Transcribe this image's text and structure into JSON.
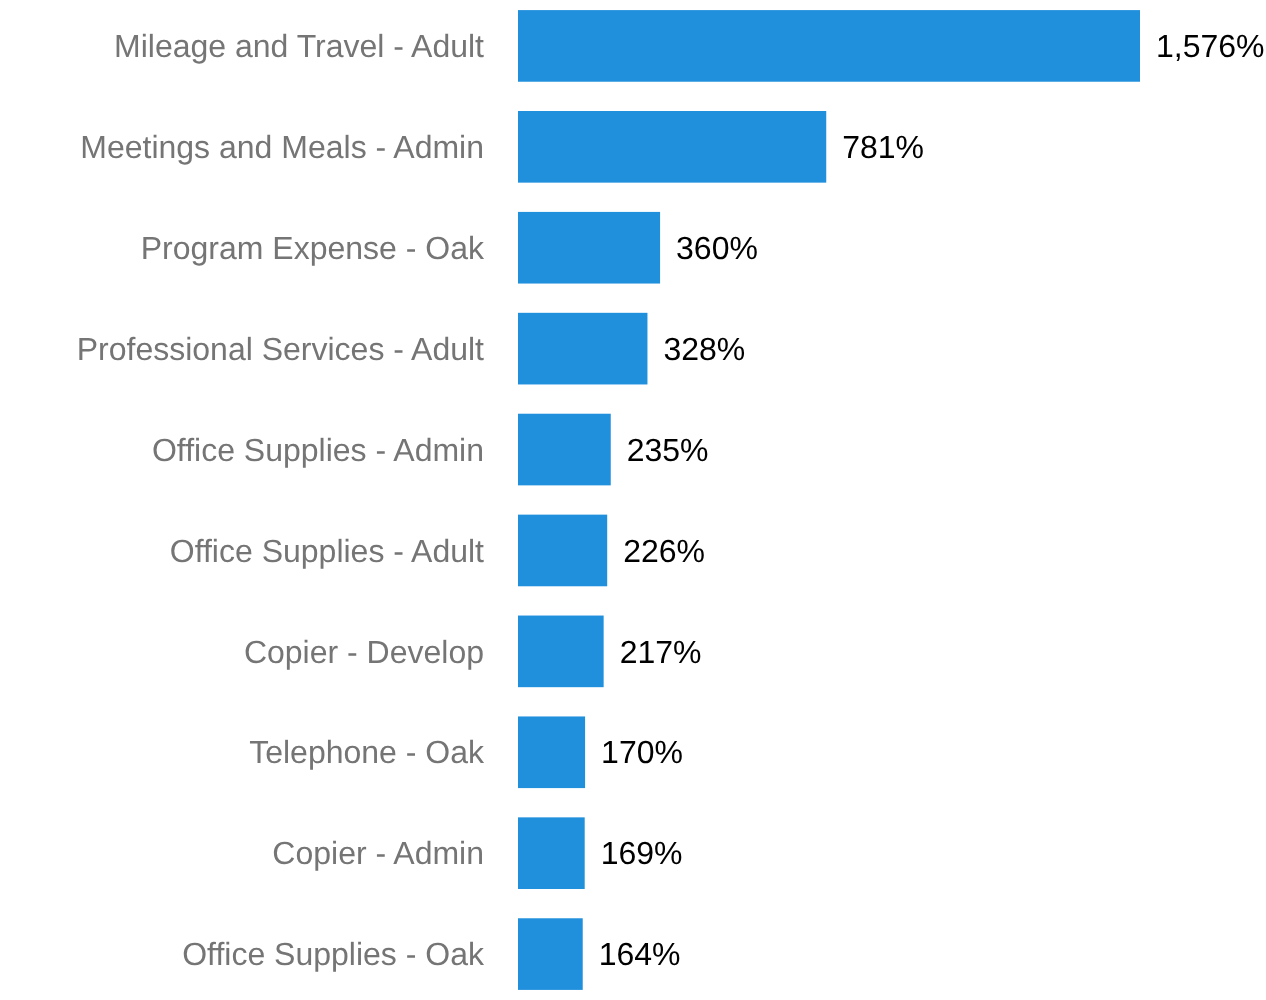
{
  "chart_data": {
    "type": "bar",
    "orientation": "horizontal",
    "categories": [
      "Mileage and Travel - Adult",
      "Meetings and Meals - Admin",
      "Program Expense - Oak",
      "Professional Services - Adult",
      "Office Supplies - Admin",
      "Office Supplies - Adult",
      "Copier - Develop",
      "Telephone - Oak",
      "Copier - Admin",
      "Office Supplies - Oak"
    ],
    "values": [
      1576,
      781,
      360,
      328,
      235,
      226,
      217,
      170,
      169,
      164
    ],
    "value_labels": [
      "1,576%",
      "781%",
      "360%",
      "328%",
      "235%",
      "226%",
      "217%",
      "170%",
      "169%",
      "164%"
    ],
    "color": "#2190dc"
  }
}
